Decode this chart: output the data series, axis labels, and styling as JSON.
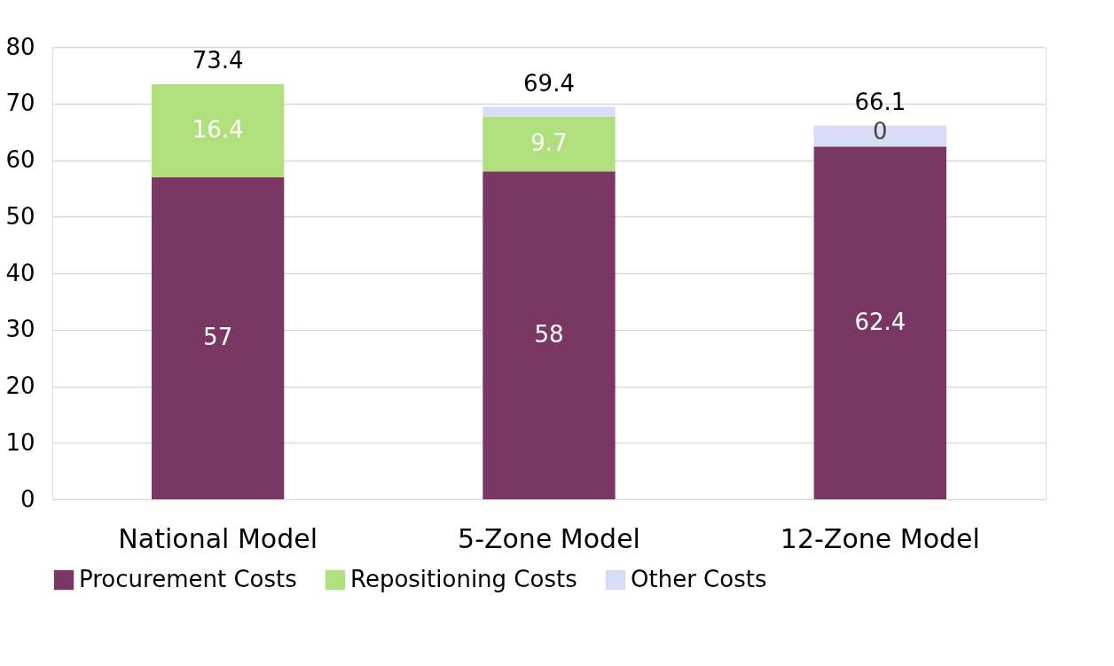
{
  "chart_data": {
    "type": "bar",
    "stacked": true,
    "categories": [
      "National Model",
      "5-Zone Model",
      "12-Zone Model"
    ],
    "series": [
      {
        "name": "Procurement Costs",
        "color": "#7b3763",
        "values": [
          57,
          58,
          62.4
        ],
        "value_labels": [
          "57",
          "58",
          "62.4"
        ]
      },
      {
        "name": "Repositioning Costs",
        "color": "#b0e07e",
        "values": [
          16.4,
          9.7,
          0
        ],
        "value_labels": [
          "16.4",
          "9.7",
          "0"
        ]
      },
      {
        "name": "Other Costs",
        "color": "#d9dcf6",
        "values": [
          0,
          1.7,
          3.7
        ],
        "value_labels": [
          null,
          null,
          null
        ]
      }
    ],
    "totals": [
      "73.4",
      "69.4",
      "66.1"
    ],
    "ylim": [
      0,
      80
    ],
    "yticks": [
      0,
      10,
      20,
      30,
      40,
      50,
      60,
      70,
      80
    ],
    "grid": "y",
    "legend": "bottom"
  }
}
